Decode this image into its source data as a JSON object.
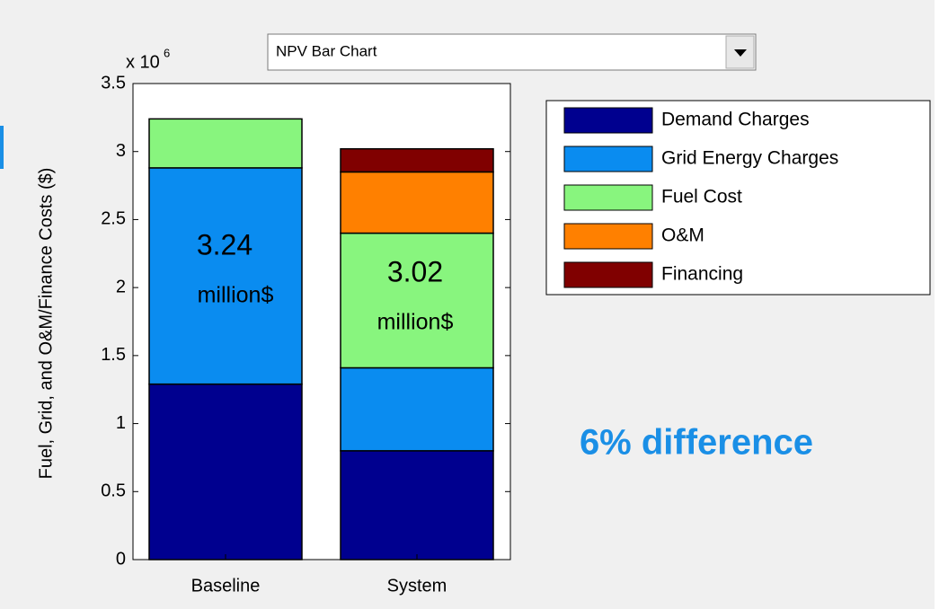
{
  "chart_data": {
    "type": "stacked_bar",
    "dropdown": "NPV Bar Chart",
    "y_multiplier": {
      "base": "x 10",
      "exponent": "6"
    },
    "y_label": "Fuel, Grid, and O&M/Finance Costs ($)",
    "categories": [
      "Baseline",
      "System"
    ],
    "series": [
      {
        "name": "Demand Charges",
        "color": "#00008f",
        "values": [
          1.29,
          0.8
        ]
      },
      {
        "name": "Grid Energy Charges",
        "color": "#0a8cf0",
        "values": [
          1.59,
          0.61
        ]
      },
      {
        "name": "Fuel Cost",
        "color": "#88f57e",
        "values": [
          0.36,
          0.99
        ]
      },
      {
        "name": "O&M",
        "color": "#ff8000",
        "values": [
          0,
          0.45
        ]
      },
      {
        "name": "Financing",
        "color": "#800000",
        "values": [
          0,
          0.17
        ]
      }
    ],
    "ylim": [
      0,
      3.5
    ],
    "yticks": [
      0,
      0.5,
      1,
      1.5,
      2,
      2.5,
      3,
      3.5
    ],
    "annotations": [
      {
        "lines": [
          "3.24",
          "million$"
        ]
      },
      {
        "lines": [
          "3.02",
          "million$"
        ]
      },
      {
        "lines": [
          "6% difference"
        ]
      }
    ]
  }
}
